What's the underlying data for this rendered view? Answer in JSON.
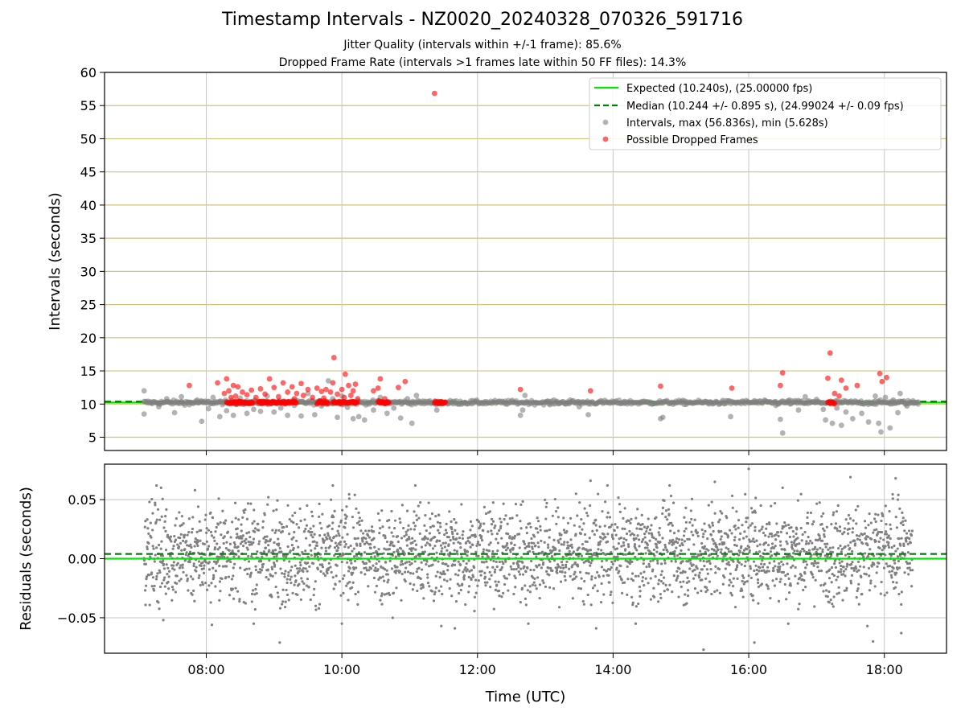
{
  "title": "Timestamp Intervals - NZ0020_20240328_070326_591716",
  "subtitle_1": "Jitter Quality (intervals within +/-1 frame): 85.6%",
  "subtitle_2": "Dropped Frame Rate (intervals >1 frames late within 50 FF files): 14.3%",
  "colors": {
    "expected_line": "#00e600",
    "median_line": "#008000",
    "intervals_points": "#808080",
    "dropped_points": "#ff0000",
    "residual_points": "#808080",
    "top_grid": "#d4c27a",
    "vertical_grid": "#c8c8c8"
  },
  "chart_data": [
    {
      "type": "scatter",
      "xlabel": "",
      "ylabel": "Intervals (seconds)",
      "xlim": [
        "06:30",
        "18:55"
      ],
      "ylim": [
        3,
        60
      ],
      "x_ticks": [
        "08:00",
        "10:00",
        "12:00",
        "14:00",
        "16:00",
        "18:00"
      ],
      "y_ticks": [
        5,
        10,
        15,
        20,
        25,
        30,
        35,
        40,
        45,
        50,
        55,
        60
      ],
      "grid": true,
      "legend_position": "top-right",
      "legend": [
        "Expected (10.240s), (25.00000 fps)",
        "Median (10.244 +/- 0.895 s), (24.99024 +/- 0.09 fps)",
        "Intervals, max (56.836s), min (5.628s)",
        "Possible Dropped Frames"
      ],
      "lines": [
        {
          "name": "Expected (10.240s), (25.00000 fps)",
          "y": 10.24,
          "style": "solid"
        },
        {
          "name": "Median (10.244 +/- 0.895 s), (24.99024 +/- 0.09 fps)",
          "y": 10.244,
          "style": "dashed"
        }
      ],
      "series": [
        {
          "name": "Intervals, max (56.836s), min (5.628s)",
          "points": [
            [
              "07:05",
              12.0
            ],
            [
              "07:05",
              8.5
            ],
            [
              "07:12",
              10.2
            ],
            [
              "07:18",
              9.6
            ],
            [
              "07:25",
              10.8
            ],
            [
              "07:32",
              8.7
            ],
            [
              "07:38",
              11.1
            ],
            [
              "07:45",
              9.9
            ],
            [
              "07:52",
              10.6
            ],
            [
              "07:56",
              7.4
            ],
            [
              "08:02",
              9.3
            ],
            [
              "08:06",
              11.0
            ],
            [
              "08:12",
              8.1
            ],
            [
              "08:18",
              9.0
            ],
            [
              "08:24",
              8.3
            ],
            [
              "08:30",
              10.9
            ],
            [
              "08:36",
              8.6
            ],
            [
              "08:42",
              9.2
            ],
            [
              "08:48",
              8.9
            ],
            [
              "08:54",
              11.2
            ],
            [
              "09:00",
              8.8
            ],
            [
              "09:06",
              9.4
            ],
            [
              "09:12",
              8.3
            ],
            [
              "09:18",
              9.8
            ],
            [
              "09:24",
              8.2
            ],
            [
              "09:30",
              11.6
            ],
            [
              "09:36",
              8.4
            ],
            [
              "09:42",
              9.7
            ],
            [
              "09:48",
              13.5
            ],
            [
              "09:52",
              10.8
            ],
            [
              "09:56",
              8.0
            ],
            [
              "10:00",
              11.2
            ],
            [
              "10:05",
              9.5
            ],
            [
              "10:10",
              7.8
            ],
            [
              "10:15",
              8.1
            ],
            [
              "10:20",
              7.6
            ],
            [
              "10:28",
              9.1
            ],
            [
              "10:34",
              11.0
            ],
            [
              "10:40",
              8.6
            ],
            [
              "10:46",
              9.4
            ],
            [
              "10:52",
              7.9
            ],
            [
              "10:58",
              10.8
            ],
            [
              "11:02",
              7.1
            ],
            [
              "11:06",
              11.3
            ],
            [
              "11:24",
              9.1
            ],
            [
              "11:34",
              10.0
            ],
            [
              "12:38",
              8.3
            ],
            [
              "12:40",
              9.1
            ],
            [
              "12:42",
              11.3
            ],
            [
              "13:04",
              9.9
            ],
            [
              "13:22",
              10.6
            ],
            [
              "13:30",
              9.6
            ],
            [
              "13:38",
              8.4
            ],
            [
              "14:10",
              10.4
            ],
            [
              "14:42",
              7.8
            ],
            [
              "14:44",
              8.0
            ],
            [
              "15:05",
              10.2
            ],
            [
              "15:25",
              10.0
            ],
            [
              "15:44",
              8.1
            ],
            [
              "16:05",
              10.5
            ],
            [
              "16:24",
              9.8
            ],
            [
              "16:28",
              7.7
            ],
            [
              "16:30",
              5.628
            ],
            [
              "16:36",
              10.6
            ],
            [
              "16:44",
              9.1
            ],
            [
              "16:50",
              11.1
            ],
            [
              "17:00",
              10.7
            ],
            [
              "17:06",
              9.2
            ],
            [
              "17:08",
              7.6
            ],
            [
              "17:14",
              7.1
            ],
            [
              "17:18",
              9.4
            ],
            [
              "17:22",
              6.8
            ],
            [
              "17:26",
              8.8
            ],
            [
              "17:32",
              7.8
            ],
            [
              "17:40",
              8.6
            ],
            [
              "17:46",
              7.3
            ],
            [
              "17:52",
              11.2
            ],
            [
              "17:55",
              7.1
            ],
            [
              "17:57",
              5.8
            ],
            [
              "18:01",
              11.0
            ],
            [
              "18:05",
              6.4
            ],
            [
              "18:08",
              10.6
            ],
            [
              "18:12",
              8.7
            ],
            [
              "18:14",
              11.6
            ],
            [
              "18:20",
              9.7
            ],
            [
              "18:26",
              10.1
            ],
            [
              "18:30",
              10.3
            ]
          ]
        },
        {
          "name": "Possible Dropped Frames",
          "points": [
            [
              "07:45",
              12.8
            ],
            [
              "08:10",
              13.2
            ],
            [
              "08:16",
              11.6
            ],
            [
              "08:18",
              13.8
            ],
            [
              "08:20",
              12.0
            ],
            [
              "08:22",
              11.0
            ],
            [
              "08:24",
              12.8
            ],
            [
              "08:26",
              11.2
            ],
            [
              "08:28",
              12.6
            ],
            [
              "08:32",
              11.8
            ],
            [
              "08:36",
              11.4
            ],
            [
              "08:40",
              12.1
            ],
            [
              "08:44",
              11.0
            ],
            [
              "08:48",
              12.3
            ],
            [
              "08:52",
              11.5
            ],
            [
              "08:56",
              13.8
            ],
            [
              "09:00",
              12.5
            ],
            [
              "09:04",
              11.1
            ],
            [
              "09:08",
              13.2
            ],
            [
              "09:12",
              11.8
            ],
            [
              "09:16",
              12.6
            ],
            [
              "09:18",
              10.8
            ],
            [
              "09:20",
              11.6
            ],
            [
              "09:24",
              13.1
            ],
            [
              "09:26",
              11.3
            ],
            [
              "09:30",
              12.2
            ],
            [
              "09:34",
              11.0
            ],
            [
              "09:38",
              12.4
            ],
            [
              "09:42",
              11.9
            ],
            [
              "09:44",
              10.9
            ],
            [
              "09:46",
              12.2
            ],
            [
              "09:50",
              11.8
            ],
            [
              "09:52",
              13.2
            ],
            [
              "09:53",
              17.0
            ],
            [
              "09:56",
              11.5
            ],
            [
              "10:00",
              12.2
            ],
            [
              "10:02",
              11.0
            ],
            [
              "10:03",
              14.5
            ],
            [
              "10:06",
              12.8
            ],
            [
              "10:08",
              11.3
            ],
            [
              "10:10",
              12.0
            ],
            [
              "10:12",
              13.0
            ],
            [
              "10:14",
              10.8
            ],
            [
              "10:28",
              12.0
            ],
            [
              "10:32",
              12.4
            ],
            [
              "10:34",
              13.8
            ],
            [
              "10:38",
              10.8
            ],
            [
              "10:50",
              12.5
            ],
            [
              "10:56",
              13.4
            ],
            [
              "11:22",
              56.836
            ],
            [
              "12:38",
              12.2
            ],
            [
              "13:40",
              12.0
            ],
            [
              "14:42",
              12.7
            ],
            [
              "15:45",
              12.4
            ],
            [
              "16:28",
              12.8
            ],
            [
              "16:30",
              14.7
            ],
            [
              "17:10",
              13.9
            ],
            [
              "17:12",
              17.7
            ],
            [
              "17:16",
              11.6
            ],
            [
              "17:20",
              11.2
            ],
            [
              "17:22",
              13.6
            ],
            [
              "17:26",
              12.4
            ],
            [
              "17:36",
              12.8
            ],
            [
              "17:56",
              14.6
            ],
            [
              "17:58",
              13.4
            ],
            [
              "18:02",
              14.0
            ]
          ]
        }
      ],
      "dense_bands": [
        {
          "series": "Intervals, max (56.836s), min (5.628s)",
          "x_from": "07:05",
          "x_to": "18:30",
          "y": 10.24
        },
        {
          "series": "Possible Dropped Frames",
          "segments": [
            [
              "08:18",
              "08:42"
            ],
            [
              "08:46",
              "09:20"
            ],
            [
              "09:38",
              "09:48"
            ],
            [
              "09:52",
              "10:14"
            ],
            [
              "10:32",
              "10:42"
            ],
            [
              "11:22",
              "11:32"
            ],
            [
              "17:10",
              "17:16"
            ]
          ],
          "y": 10.24
        }
      ]
    },
    {
      "type": "scatter",
      "xlabel": "Time (UTC)",
      "ylabel": "Residuals (seconds)",
      "xlim": [
        "06:30",
        "18:55"
      ],
      "ylim": [
        -0.08,
        0.08
      ],
      "x_ticks": [
        "08:00",
        "10:00",
        "12:00",
        "14:00",
        "16:00",
        "18:00"
      ],
      "y_ticks": [
        "0.05",
        "0.00",
        "−0.05"
      ],
      "grid": true,
      "lines": [
        {
          "name": "Expected",
          "y": 0.0,
          "style": "solid"
        },
        {
          "name": "Median",
          "y": 0.004,
          "style": "dashed"
        }
      ],
      "series": [
        {
          "name": "Residuals",
          "x_range": [
            "07:05",
            "18:25"
          ],
          "y_center": 0.005,
          "y_spread": 0.02,
          "y_min": -0.078,
          "y_max": 0.076,
          "outliers": [
            [
              "07:16",
              0.062
            ],
            [
              "07:20",
              0.06
            ],
            [
              "07:22",
              -0.052
            ],
            [
              "07:50",
              0.058
            ],
            [
              "08:05",
              -0.056
            ],
            [
              "08:42",
              -0.055
            ],
            [
              "08:55",
              0.052
            ],
            [
              "09:05",
              -0.071
            ],
            [
              "09:52",
              0.062
            ],
            [
              "10:00",
              -0.055
            ],
            [
              "10:45",
              -0.05
            ],
            [
              "11:05",
              0.062
            ],
            [
              "11:28",
              -0.057
            ],
            [
              "11:40",
              -0.059
            ],
            [
              "12:45",
              -0.055
            ],
            [
              "13:40",
              0.066
            ],
            [
              "13:45",
              -0.059
            ],
            [
              "13:55",
              0.062
            ],
            [
              "14:20",
              -0.055
            ],
            [
              "14:50",
              0.062
            ],
            [
              "15:20",
              -0.077
            ],
            [
              "15:30",
              0.065
            ],
            [
              "16:00",
              0.076
            ],
            [
              "16:05",
              -0.071
            ],
            [
              "16:30",
              0.06
            ],
            [
              "16:35",
              -0.055
            ],
            [
              "17:30",
              0.069
            ],
            [
              "17:45",
              -0.057
            ],
            [
              "17:50",
              -0.07
            ],
            [
              "18:10",
              0.068
            ],
            [
              "18:12",
              0.05
            ],
            [
              "18:15",
              -0.063
            ]
          ]
        }
      ]
    }
  ]
}
